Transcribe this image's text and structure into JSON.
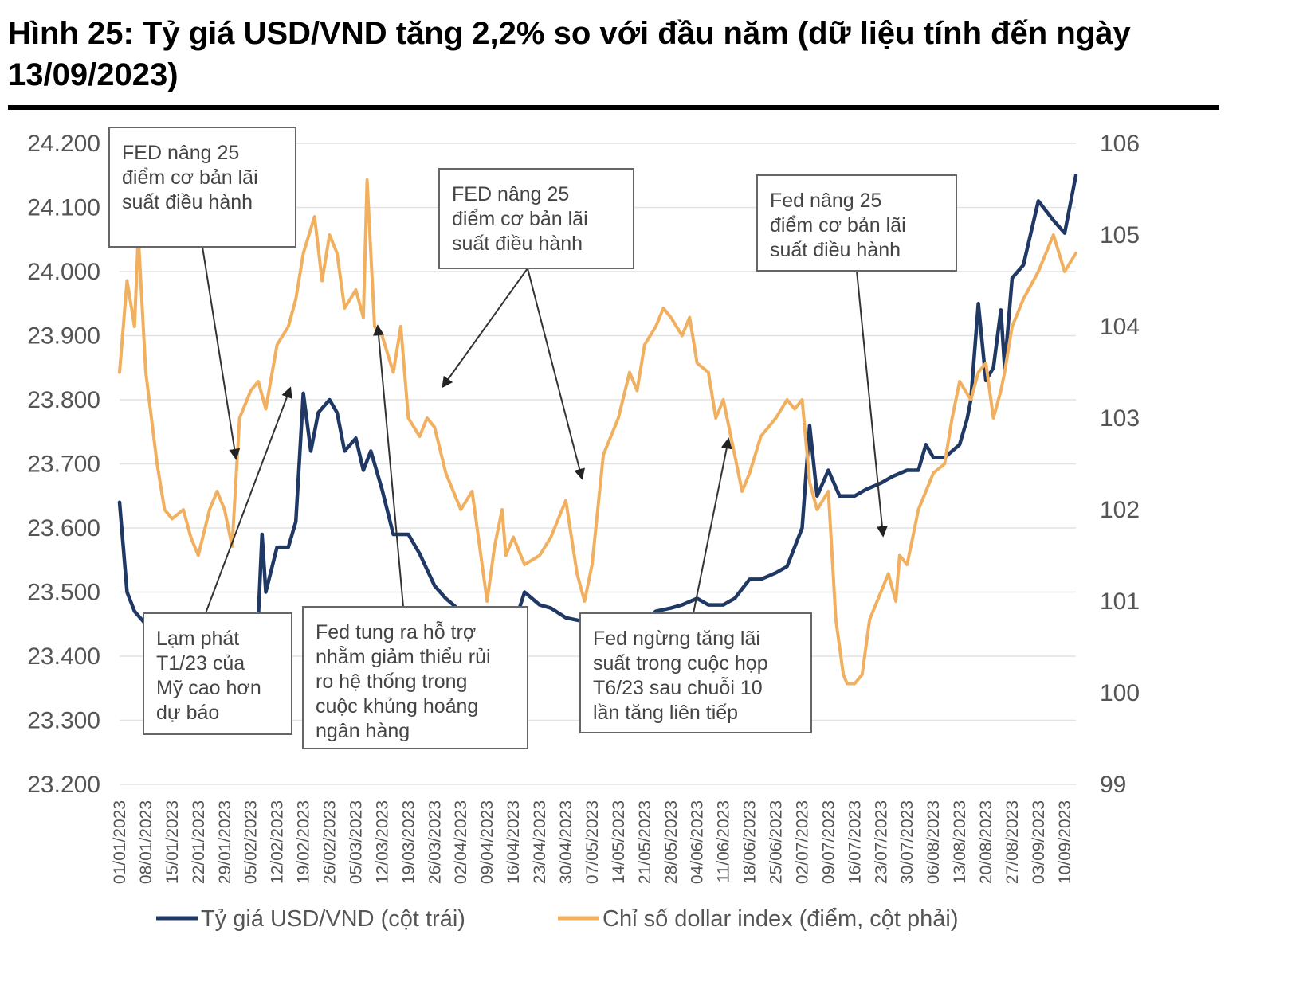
{
  "title": "Hình 25: Tỷ giá USD/VND tăng 2,2% so với đầu năm (dữ liệu tính đến ngày 13/09/2023)",
  "chart_data": {
    "type": "line",
    "x_labels": [
      "01/01/2023",
      "08/01/2023",
      "15/01/2023",
      "22/01/2023",
      "29/01/2023",
      "05/02/2023",
      "12/02/2023",
      "19/02/2023",
      "26/02/2023",
      "05/03/2023",
      "12/03/2023",
      "19/03/2023",
      "26/03/2023",
      "02/04/2023",
      "09/04/2023",
      "16/04/2023",
      "23/04/2023",
      "30/04/2023",
      "07/05/2023",
      "14/05/2023",
      "21/05/2023",
      "28/05/2023",
      "04/06/2023",
      "11/06/2023",
      "18/06/2023",
      "25/06/2023",
      "02/07/2023",
      "09/07/2023",
      "16/07/2023",
      "23/07/2023",
      "30/07/2023",
      "06/08/2023",
      "13/08/2023",
      "20/08/2023",
      "27/08/2023",
      "03/09/2023",
      "10/09/2023"
    ],
    "y_left": {
      "ticks": [
        "23.200",
        "23.300",
        "23.400",
        "23.500",
        "23.600",
        "23.700",
        "23.800",
        "23.900",
        "24.000",
        "24.100",
        "24.200"
      ],
      "range": [
        23200,
        24200
      ]
    },
    "y_right": {
      "ticks": [
        "99",
        "100",
        "101",
        "102",
        "103",
        "104",
        "105",
        "106"
      ],
      "range": [
        99,
        106
      ]
    },
    "series": [
      {
        "name": "Tỷ giá USD/VND (cột trái)",
        "axis": "left",
        "color": "#1f3864",
        "x": [
          "01/01/2023",
          "03/01/2023",
          "05/01/2023",
          "08/01/2023",
          "11/01/2023",
          "15/01/2023",
          "18/01/2023",
          "22/01/2023",
          "25/01/2023",
          "29/01/2023",
          "02/02/2023",
          "05/02/2023",
          "07/02/2023",
          "08/02/2023",
          "09/02/2023",
          "12/02/2023",
          "15/02/2023",
          "17/02/2023",
          "19/02/2023",
          "21/02/2023",
          "23/02/2023",
          "26/02/2023",
          "28/02/2023",
          "02/03/2023",
          "05/03/2023",
          "07/03/2023",
          "09/03/2023",
          "12/03/2023",
          "15/03/2023",
          "19/03/2023",
          "22/03/2023",
          "26/03/2023",
          "29/03/2023",
          "02/04/2023",
          "05/04/2023",
          "09/04/2023",
          "12/04/2023",
          "16/04/2023",
          "19/04/2023",
          "23/04/2023",
          "26/04/2023",
          "30/04/2023",
          "04/05/2023",
          "07/05/2023",
          "10/05/2023",
          "14/05/2023",
          "17/05/2023",
          "21/05/2023",
          "24/05/2023",
          "28/05/2023",
          "31/05/2023",
          "04/06/2023",
          "07/06/2023",
          "11/06/2023",
          "14/06/2023",
          "18/06/2023",
          "21/06/2023",
          "25/06/2023",
          "28/06/2023",
          "02/07/2023",
          "04/07/2023",
          "06/07/2023",
          "09/07/2023",
          "12/07/2023",
          "16/07/2023",
          "19/07/2023",
          "23/07/2023",
          "26/07/2023",
          "30/07/2023",
          "02/08/2023",
          "04/08/2023",
          "06/08/2023",
          "09/08/2023",
          "11/08/2023",
          "13/08/2023",
          "15/08/2023",
          "16/08/2023",
          "18/08/2023",
          "20/08/2023",
          "22/08/2023",
          "24/08/2023",
          "25/08/2023",
          "27/08/2023",
          "30/08/2023",
          "03/09/2023",
          "07/09/2023",
          "10/09/2023",
          "13/09/2023"
        ],
        "values": [
          23640,
          23500,
          23470,
          23450,
          23440,
          23440,
          23445,
          23445,
          23450,
          23450,
          23450,
          23450,
          23460,
          23590,
          23500,
          23570,
          23570,
          23610,
          23810,
          23720,
          23780,
          23800,
          23780,
          23720,
          23740,
          23690,
          23720,
          23660,
          23590,
          23590,
          23560,
          23510,
          23490,
          23470,
          23470,
          23450,
          23450,
          23445,
          23500,
          23480,
          23475,
          23460,
          23455,
          23450,
          23460,
          23460,
          23455,
          23455,
          23470,
          23475,
          23480,
          23490,
          23480,
          23480,
          23490,
          23520,
          23520,
          23530,
          23540,
          23600,
          23760,
          23650,
          23690,
          23650,
          23650,
          23660,
          23670,
          23680,
          23690,
          23690,
          23730,
          23710,
          23710,
          23720,
          23730,
          23770,
          23800,
          23950,
          23830,
          23850,
          23940,
          23850,
          23990,
          24010,
          24110,
          24080,
          24060,
          24150
        ]
      },
      {
        "name": "Chỉ số dollar index (điểm, cột phải)",
        "axis": "right",
        "color": "#f0b060",
        "x": [
          "01/01/2023",
          "03/01/2023",
          "05/01/2023",
          "06/01/2023",
          "08/01/2023",
          "11/01/2023",
          "13/01/2023",
          "15/01/2023",
          "18/01/2023",
          "20/01/2023",
          "22/01/2023",
          "25/01/2023",
          "27/01/2023",
          "29/01/2023",
          "31/01/2023",
          "02/02/2023",
          "05/02/2023",
          "07/02/2023",
          "09/02/2023",
          "12/02/2023",
          "15/02/2023",
          "17/02/2023",
          "19/02/2023",
          "22/02/2023",
          "24/02/2023",
          "26/02/2023",
          "28/02/2023",
          "02/03/2023",
          "05/03/2023",
          "07/03/2023",
          "08/03/2023",
          "10/03/2023",
          "12/03/2023",
          "15/03/2023",
          "17/03/2023",
          "19/03/2023",
          "22/03/2023",
          "24/03/2023",
          "26/03/2023",
          "29/03/2023",
          "02/04/2023",
          "05/04/2023",
          "09/04/2023",
          "11/04/2023",
          "13/04/2023",
          "14/04/2023",
          "16/04/2023",
          "19/04/2023",
          "23/04/2023",
          "26/04/2023",
          "30/04/2023",
          "03/05/2023",
          "05/05/2023",
          "07/05/2023",
          "10/05/2023",
          "12/05/2023",
          "14/05/2023",
          "17/05/2023",
          "19/05/2023",
          "21/05/2023",
          "24/05/2023",
          "26/05/2023",
          "28/05/2023",
          "31/05/2023",
          "02/06/2023",
          "04/06/2023",
          "07/06/2023",
          "09/06/2023",
          "11/06/2023",
          "14/06/2023",
          "16/06/2023",
          "18/06/2023",
          "21/06/2023",
          "25/06/2023",
          "28/06/2023",
          "30/06/2023",
          "02/07/2023",
          "04/07/2023",
          "06/07/2023",
          "09/07/2023",
          "11/07/2023",
          "13/07/2023",
          "14/07/2023",
          "16/07/2023",
          "18/07/2023",
          "20/07/2023",
          "23/07/2023",
          "25/07/2023",
          "27/07/2023",
          "28/07/2023",
          "30/07/2023",
          "02/08/2023",
          "06/08/2023",
          "09/08/2023",
          "11/08/2023",
          "13/08/2023",
          "16/08/2023",
          "18/08/2023",
          "20/08/2023",
          "22/08/2023",
          "24/08/2023",
          "25/08/2023",
          "27/08/2023",
          "30/08/2023",
          "03/09/2023",
          "05/09/2023",
          "07/09/2023",
          "10/09/2023",
          "13/09/2023"
        ],
        "values": [
          103.5,
          104.5,
          104.0,
          105.0,
          103.5,
          102.5,
          102.0,
          101.9,
          102.0,
          101.7,
          101.5,
          102.0,
          102.2,
          102.0,
          101.6,
          103.0,
          103.3,
          103.4,
          103.1,
          103.8,
          104.0,
          104.3,
          104.8,
          105.2,
          104.5,
          105.0,
          104.8,
          104.2,
          104.4,
          104.1,
          105.6,
          104.0,
          103.9,
          103.5,
          104.0,
          103.0,
          102.8,
          103.0,
          102.9,
          102.4,
          102.0,
          102.2,
          101.0,
          101.6,
          102.0,
          101.5,
          101.7,
          101.4,
          101.5,
          101.7,
          102.1,
          101.3,
          101.0,
          101.4,
          102.6,
          102.8,
          103.0,
          103.5,
          103.3,
          103.8,
          104.0,
          104.2,
          104.1,
          103.9,
          104.1,
          103.6,
          103.5,
          103.0,
          103.2,
          102.6,
          102.2,
          102.4,
          102.8,
          103.0,
          103.2,
          103.1,
          103.2,
          102.3,
          102.0,
          102.2,
          100.8,
          100.2,
          100.1,
          100.1,
          100.2,
          100.8,
          101.1,
          101.3,
          101.0,
          101.5,
          101.4,
          102.0,
          102.4,
          102.5,
          103.0,
          103.4,
          103.2,
          103.5,
          103.6,
          103.0,
          103.3,
          103.5,
          104.0,
          104.3,
          104.6,
          104.8,
          105.0,
          104.6,
          104.8
        ]
      }
    ],
    "legend_position": "bottom",
    "grid": true
  },
  "annotations": [
    {
      "lines": [
        "FED nâng 25",
        "điểm cơ bản lãi",
        "suất điều hành"
      ]
    },
    {
      "lines": [
        "FED nâng 25",
        "điểm cơ bản lãi",
        "suất điều hành"
      ]
    },
    {
      "lines": [
        "Fed nâng 25",
        "điểm cơ bản lãi",
        "suất điều hành"
      ]
    },
    {
      "lines": [
        "Lạm phát",
        "T1/23 của",
        "Mỹ cao hơn",
        "dự báo"
      ]
    },
    {
      "lines": [
        "Fed tung ra hỗ trợ",
        "nhằm giảm thiểu rủi",
        "ro hệ thống trong",
        "cuộc khủng hoảng",
        "ngân hàng"
      ]
    },
    {
      "lines": [
        "Fed ngừng tăng lãi",
        "suất trong cuộc họp",
        "T6/23 sau chuỗi 10",
        "lần tăng liên tiếp"
      ]
    }
  ],
  "legend": [
    {
      "label": "Tỷ giá USD/VND (cột trái)",
      "color": "#1f3864"
    },
    {
      "label": "Chỉ số dollar index (điểm, cột phải)",
      "color": "#f0b060"
    }
  ]
}
